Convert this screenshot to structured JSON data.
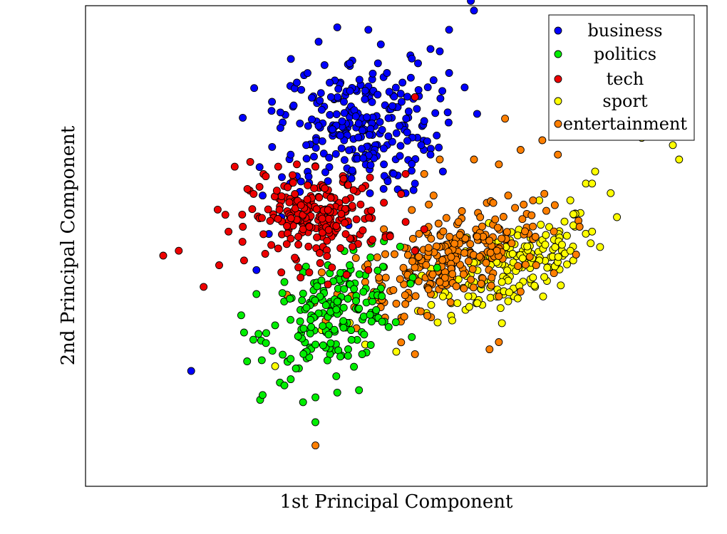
{
  "chart_data": {
    "type": "scatter",
    "title": "",
    "xlabel": "1st Principal Component",
    "ylabel": "2nd Principal Component",
    "xlim": [
      -10,
      10
    ],
    "ylim": [
      -10,
      10
    ],
    "grid": false,
    "ticks": false,
    "legend_position": "top-right",
    "series": [
      {
        "name": "business",
        "color": "#0000ff",
        "points": [
          [
            -3.2,
            6.8
          ],
          [
            -2.5,
            8.5
          ],
          [
            -1.9,
            9.1
          ],
          [
            -0.9,
            9.0
          ],
          [
            -0.3,
            7.2
          ],
          [
            0.5,
            7.8
          ],
          [
            1.1,
            8.2
          ],
          [
            1.7,
            9.0
          ],
          [
            2.4,
            10.2
          ],
          [
            2.5,
            9.8
          ],
          [
            1.4,
            8.1
          ],
          [
            2.6,
            5.5
          ],
          [
            -1.5,
            7.6
          ],
          [
            -2.1,
            6.2
          ],
          [
            -2.9,
            4.2
          ],
          [
            -3.1,
            5.1
          ],
          [
            -4.0,
            6.0
          ],
          [
            -3.4,
            3.8
          ],
          [
            -2.5,
            5.0
          ],
          [
            -1.8,
            4.6
          ],
          [
            -1.3,
            5.4
          ],
          [
            -0.6,
            6.3
          ],
          [
            0.2,
            6.8
          ],
          [
            0.4,
            5.6
          ],
          [
            0.9,
            5.2
          ],
          [
            1.2,
            6.9
          ],
          [
            1.7,
            7.2
          ],
          [
            0.8,
            4.2
          ],
          [
            1.1,
            3.8
          ],
          [
            1.5,
            3.1
          ],
          [
            -2.2,
            2.7
          ],
          [
            -3.2,
            2.9
          ],
          [
            -3.7,
            1.2
          ],
          [
            -4.1,
            0.5
          ],
          [
            -4.3,
            2.1
          ],
          [
            -2.9,
            1.6
          ],
          [
            -2.4,
            0.7
          ],
          [
            -6.6,
            -5.2
          ],
          [
            -4.5,
            -1.0
          ],
          [
            0.3,
            2.2
          ],
          [
            0.6,
            2.6
          ],
          [
            -0.4,
            3.4
          ],
          [
            2.2,
            6.6
          ],
          [
            1.3,
            4.6
          ],
          [
            0.1,
            5.0
          ]
        ],
        "density": {
          "cx": -1.3,
          "cy": 5.0,
          "sx": 1.25,
          "sy": 1.45,
          "n": 240
        }
      },
      {
        "name": "politics",
        "color": "#00ee00",
        "points": [
          [
            -4.5,
            -2.0
          ],
          [
            -4.9,
            -3.6
          ],
          [
            -4.6,
            -3.9
          ],
          [
            -4.8,
            -4.8
          ],
          [
            -4.3,
            -6.2
          ],
          [
            -3.6,
            -5.8
          ],
          [
            -3.0,
            -6.5
          ],
          [
            -2.6,
            -6.3
          ],
          [
            -1.9,
            -6.1
          ],
          [
            -1.2,
            -6.0
          ],
          [
            -3.6,
            -1.5
          ],
          [
            -3.0,
            -1.1
          ],
          [
            -2.2,
            -0.8
          ],
          [
            -1.5,
            -0.8
          ],
          [
            -0.8,
            0.1
          ],
          [
            -0.4,
            0.2
          ],
          [
            -1.2,
            -2.6
          ],
          [
            -1.8,
            -4.6
          ],
          [
            -2.6,
            -4.1
          ],
          [
            -3.4,
            -4.7
          ],
          [
            -3.9,
            -3.3
          ]
        ],
        "density": {
          "cx": -2.0,
          "cy": -2.9,
          "sx": 1.05,
          "sy": 1.05,
          "n": 180
        }
      },
      {
        "name": "tech",
        "color": "#ee0000",
        "points": [
          [
            -7.5,
            -0.4
          ],
          [
            -7.0,
            -0.2
          ],
          [
            -6.2,
            -1.7
          ],
          [
            -5.7,
            -0.8
          ],
          [
            -5.4,
            0.6
          ],
          [
            -5.5,
            1.3
          ],
          [
            -4.9,
            -0.6
          ],
          [
            -5.2,
            3.3
          ],
          [
            -4.7,
            3.5
          ],
          [
            -4.2,
            2.9
          ],
          [
            -3.8,
            3.3
          ],
          [
            -3.2,
            3.4
          ],
          [
            -2.6,
            3.3
          ],
          [
            -2.3,
            2.4
          ],
          [
            -3.0,
            0.7
          ],
          [
            -3.8,
            -0.1
          ],
          [
            -3.7,
            -1.1
          ],
          [
            -2.8,
            -1.1
          ],
          [
            -2.2,
            -1.6
          ],
          [
            -1.6,
            -1.2
          ],
          [
            -0.9,
            -1.0
          ],
          [
            -0.2,
            0.4
          ],
          [
            0.3,
            1.0
          ],
          [
            0.6,
            -0.2
          ],
          [
            0.9,
            0.7
          ],
          [
            -0.4,
            1.8
          ],
          [
            -1.1,
            2.4
          ],
          [
            -1.7,
            2.8
          ],
          [
            -2.2,
            1.5
          ],
          [
            -2.8,
            0.8
          ],
          [
            0.6,
            6.2
          ],
          [
            0.3,
            3.0
          ]
        ],
        "density": {
          "cx": -2.6,
          "cy": 1.2,
          "sx": 1.05,
          "sy": 0.8,
          "n": 210
        }
      },
      {
        "name": "sport",
        "color": "#ffff00",
        "points": [
          [
            9.2,
            6.0
          ],
          [
            9.0,
            5.9
          ],
          [
            7.6,
            5.4
          ],
          [
            6.7,
            5.0
          ],
          [
            7.9,
            4.5
          ],
          [
            8.9,
            4.2
          ],
          [
            9.1,
            3.6
          ],
          [
            6.4,
            3.1
          ],
          [
            6.1,
            2.6
          ],
          [
            5.6,
            1.9
          ],
          [
            4.6,
            1.9
          ],
          [
            4.4,
            0.3
          ],
          [
            5.6,
            -0.2
          ],
          [
            6.3,
            0.6
          ],
          [
            7.1,
            1.2
          ],
          [
            6.9,
            2.2
          ],
          [
            6.3,
            2.6
          ],
          [
            2.5,
            -1.5
          ],
          [
            1.5,
            -2.1
          ],
          [
            0.7,
            -2.7
          ],
          [
            -0.7,
            -3.0
          ],
          [
            -1.5,
            -3.2
          ],
          [
            -2.4,
            -3.5
          ],
          [
            -3.1,
            -3.8
          ],
          [
            -3.9,
            -5.0
          ],
          [
            -3.5,
            -4.8
          ],
          [
            -1.0,
            -4.1
          ],
          [
            0.0,
            -4.4
          ],
          [
            1.8,
            -3.1
          ],
          [
            3.4,
            -1.5
          ],
          [
            4.6,
            -0.6
          ],
          [
            3.6,
            -2.3
          ]
        ],
        "density": {
          "cx": 3.8,
          "cy": -0.8,
          "sx": 1.3,
          "sy": 0.85,
          "n": 170
        }
      },
      {
        "name": "entertainment",
        "color": "#ff7f00",
        "points": [
          [
            3.5,
            5.3
          ],
          [
            4.7,
            4.4
          ],
          [
            5.2,
            3.8
          ],
          [
            4.0,
            4.0
          ],
          [
            3.3,
            3.4
          ],
          [
            2.5,
            3.6
          ],
          [
            1.4,
            3.6
          ],
          [
            0.9,
            3.0
          ],
          [
            1.2,
            2.1
          ],
          [
            0.5,
            1.5
          ],
          [
            2.0,
            1.0
          ],
          [
            2.7,
            1.2
          ],
          [
            3.6,
            2.1
          ],
          [
            4.4,
            1.9
          ],
          [
            5.1,
            1.7
          ],
          [
            5.9,
            0.8
          ],
          [
            4.5,
            -0.8
          ],
          [
            4.0,
            -1.9
          ],
          [
            3.3,
            -2.1
          ],
          [
            2.4,
            -1.4
          ],
          [
            1.4,
            -1.5
          ],
          [
            1.0,
            -2.9
          ],
          [
            0.0,
            -2.4
          ],
          [
            -0.8,
            -2.2
          ],
          [
            -1.9,
            -2.0
          ],
          [
            -2.4,
            -1.1
          ],
          [
            -1.3,
            -0.5
          ],
          [
            0.6,
            -4.5
          ],
          [
            -2.6,
            -8.3
          ],
          [
            3.0,
            -4.3
          ],
          [
            3.3,
            -4.0
          ],
          [
            -1.0,
            -1.5
          ],
          [
            -0.4,
            0.7
          ]
        ],
        "density": {
          "cx": 1.7,
          "cy": -0.6,
          "sx": 1.5,
          "sy": 0.8,
          "n": 250
        }
      }
    ]
  }
}
